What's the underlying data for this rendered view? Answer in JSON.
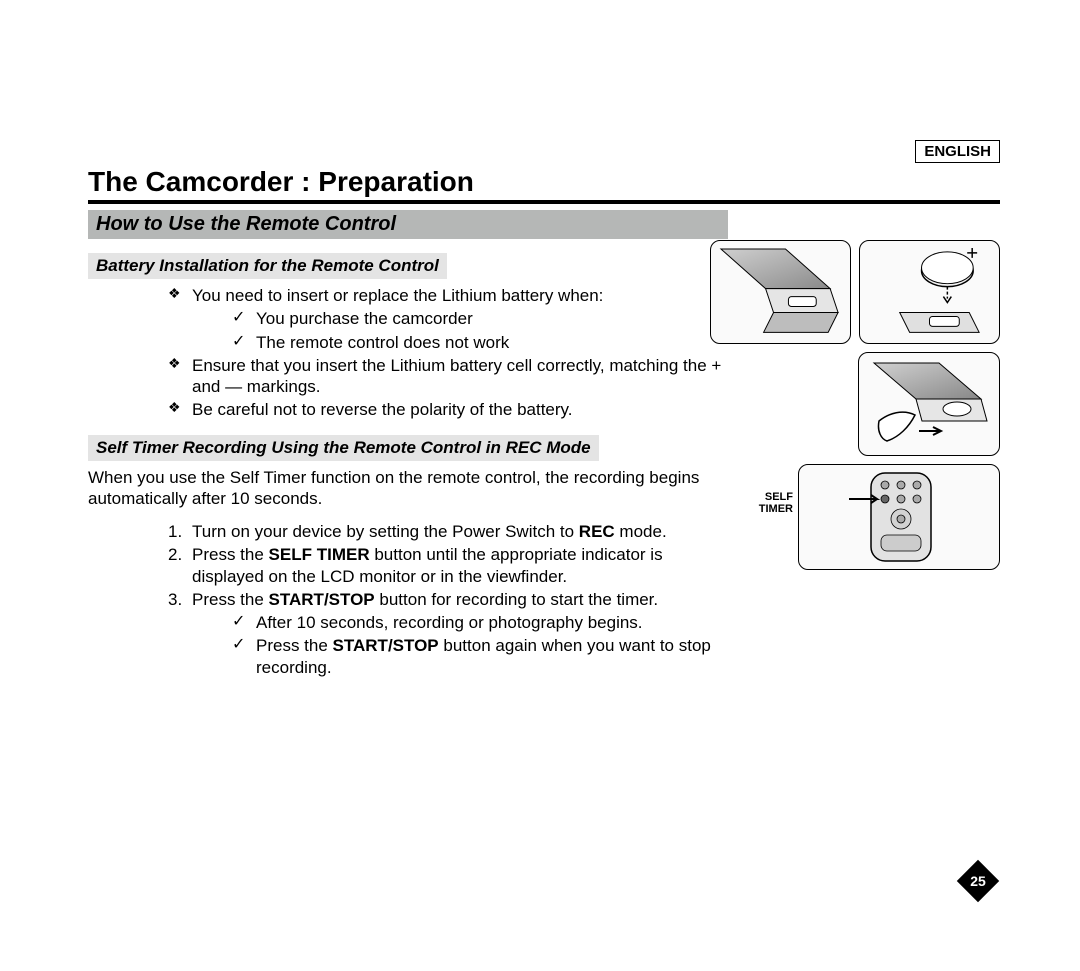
{
  "language_label": "ENGLISH",
  "page_title": "The Camcorder : Preparation",
  "section_heading": "How to Use the Remote Control",
  "subsection1": {
    "heading": "Battery Installation for the Remote Control",
    "bullets": [
      {
        "text": "You need to insert or replace the Lithium battery when:",
        "sub": [
          "You purchase the camcorder",
          "The remote control does not work"
        ]
      },
      {
        "text": "Ensure that you insert the Lithium battery cell correctly, matching the + and — markings."
      },
      {
        "text": "Be careful not to reverse the polarity of the battery."
      }
    ]
  },
  "subsection2": {
    "heading": "Self Timer Recording Using the Remote Control in REC Mode",
    "intro": "When you use the Self Timer function on the remote control, the recording begins automatically after 10 seconds.",
    "steps": [
      {
        "num": "1.",
        "html": "Turn on your device by setting the Power Switch to <b>REC</b> mode."
      },
      {
        "num": "2.",
        "html": "Press the <b>SELF TIMER</b> button until the appropriate indicator is displayed on the LCD monitor or in the viewfinder."
      },
      {
        "num": "3.",
        "html": "Press the <b>START/STOP</b> button for recording to start the timer.",
        "sub": [
          "After 10 seconds, recording or photography begins.",
          "Press the <b>START/STOP</b> button again when you want to stop recording."
        ]
      }
    ]
  },
  "illustrations": {
    "self_timer_label": "SELF TIMER"
  },
  "page_number": "25",
  "colors": {
    "page_bg": "#ffffff",
    "outer_bg": "#e8e8e8",
    "section_bar": "#b5b7b6",
    "subsection_bar": "#e4e4e4",
    "diamond": "#000000"
  }
}
